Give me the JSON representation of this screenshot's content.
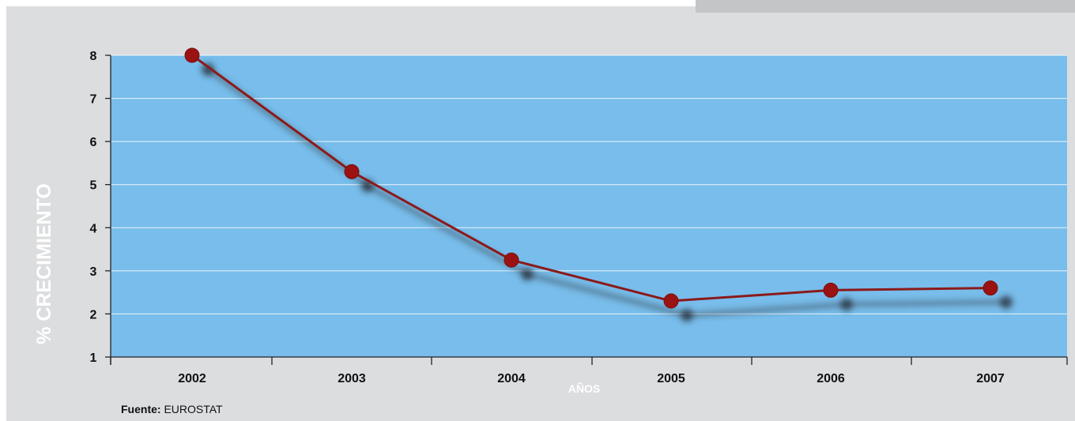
{
  "chart_data": {
    "type": "line",
    "title": "",
    "xlabel": "AÑOS",
    "ylabel": "% CRECIMIENTO",
    "categories": [
      "2002",
      "2003",
      "2004",
      "2005",
      "2006",
      "2007"
    ],
    "series": [
      {
        "values": [
          8.0,
          5.3,
          3.25,
          2.3,
          2.55,
          2.6
        ]
      }
    ],
    "ylim": [
      1,
      8
    ],
    "yticks": [
      1,
      2,
      3,
      4,
      5,
      6,
      7,
      8
    ],
    "grid": true,
    "legend": "none",
    "colors": {
      "plot_background": "#78bdeb",
      "line": "#8b1a1a",
      "marker": "#9b1212",
      "panel": "#dcdddf"
    }
  },
  "source": {
    "label": "Fuente:",
    "value": "EUROSTAT"
  }
}
